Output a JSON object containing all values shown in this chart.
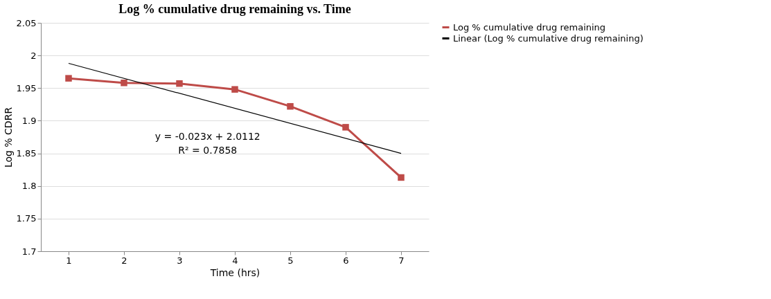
{
  "chart_data": {
    "type": "line",
    "title": "Log % cumulative drug remaining  vs. Time",
    "xlabel": "Time (hrs)",
    "ylabel": "Log % CDRR",
    "categories": [
      "1",
      "2",
      "3",
      "4",
      "5",
      "6",
      "7"
    ],
    "series": [
      {
        "name": "Log % cumulative drug remaining",
        "color": "#be4b48",
        "values": [
          1.965,
          1.958,
          1.957,
          1.948,
          1.922,
          1.89,
          1.813
        ],
        "marker": "square"
      },
      {
        "name": "Linear (Log % cumulative drug remaining)",
        "color": "#000000",
        "x": [
          "1",
          "7"
        ],
        "values": [
          1.988,
          1.85
        ],
        "marker": "none"
      }
    ],
    "ylim": [
      1.7,
      2.05
    ],
    "yticks": [
      1.7,
      1.75,
      1.8,
      1.85,
      1.9,
      1.95,
      2,
      2.05
    ],
    "grid": "y",
    "legend": "right",
    "line_style": "solid",
    "annotations": [
      "y = -0.023x + 2.0112",
      "R² = 0.7858"
    ]
  }
}
